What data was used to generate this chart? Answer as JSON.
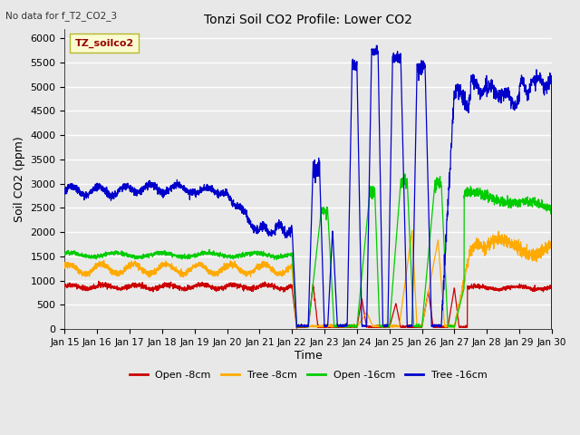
{
  "title": "Tonzi Soil CO2 Profile: Lower CO2",
  "top_left_text": "No data for f_T2_CO2_3",
  "ylabel": "Soil CO2 (ppm)",
  "xlabel": "Time",
  "legend_box_label": "TZ_soilco2",
  "ylim": [
    0,
    6200
  ],
  "yticks": [
    0,
    500,
    1000,
    1500,
    2000,
    2500,
    3000,
    3500,
    4000,
    4500,
    5000,
    5500,
    6000
  ],
  "xtick_labels": [
    "Jan 15",
    "Jan 16",
    "Jan 17",
    "Jan 18",
    "Jan 19",
    "Jan 20",
    "Jan 21",
    "Jan 22",
    "Jan 23",
    "Jan 24",
    "Jan 25",
    "Jan 26",
    "Jan 27",
    "Jan 28",
    "Jan 29",
    "Jan 30"
  ],
  "colors": {
    "open_8cm": "#cc0000",
    "tree_8cm": "#ffaa00",
    "open_16cm": "#00cc00",
    "tree_16cm": "#0000cc"
  },
  "legend_entries": [
    "Open -8cm",
    "Tree -8cm",
    "Open -16cm",
    "Tree -16cm"
  ],
  "background_color": "#e8e8e8",
  "plot_bg_color": "#e8e8e8",
  "grid_color": "#ffffff"
}
